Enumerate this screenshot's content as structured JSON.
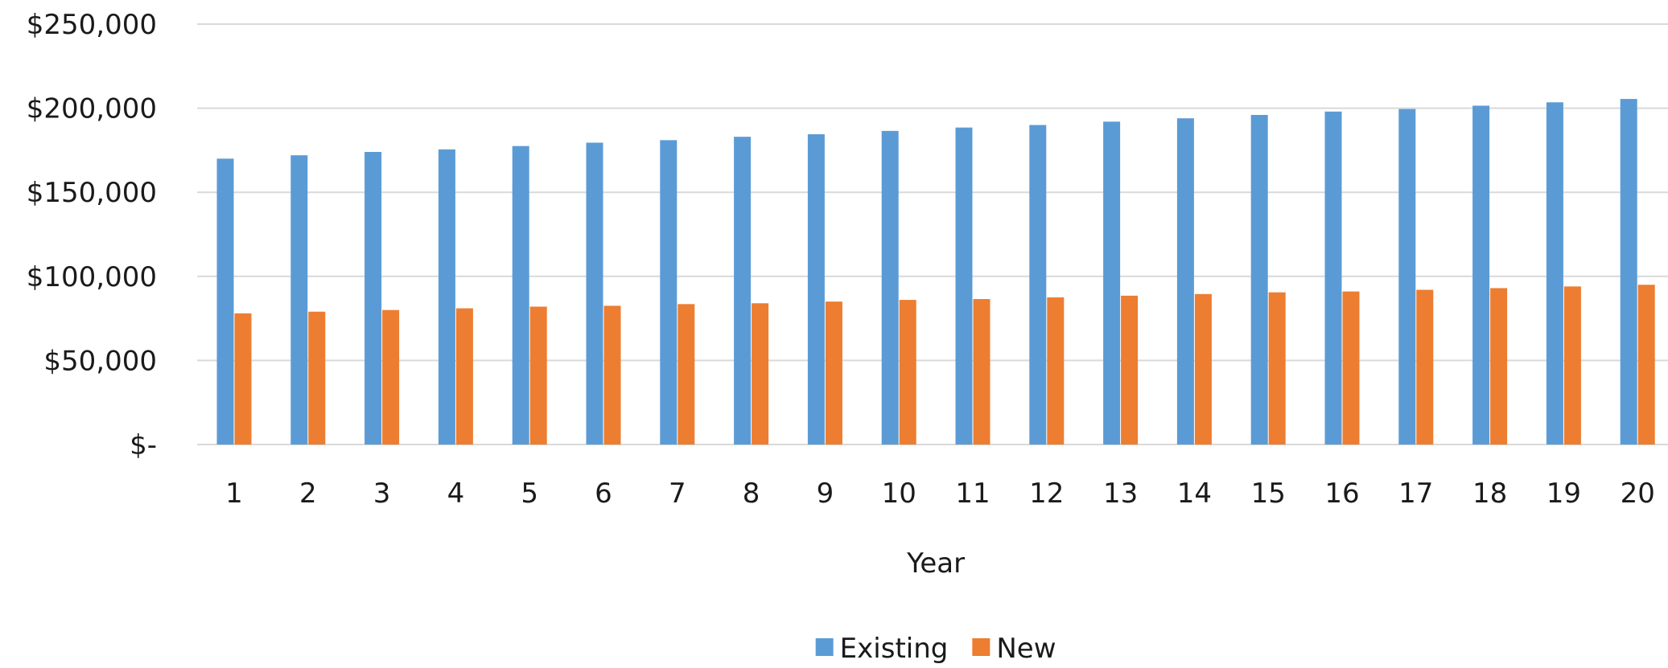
{
  "chart_data": {
    "type": "bar",
    "xlabel": "Year",
    "ylabel": "",
    "categories": [
      "1",
      "2",
      "3",
      "4",
      "5",
      "6",
      "7",
      "8",
      "9",
      "10",
      "11",
      "12",
      "13",
      "14",
      "15",
      "16",
      "17",
      "18",
      "19",
      "20"
    ],
    "series": [
      {
        "name": "Existing",
        "color": "#5B9BD5",
        "values": [
          170000,
          172000,
          174000,
          175500,
          177500,
          179500,
          181000,
          183000,
          184500,
          186500,
          188500,
          190000,
          192000,
          194000,
          196000,
          198000,
          199500,
          201500,
          203500,
          205500
        ]
      },
      {
        "name": "New",
        "color": "#ED7D31",
        "values": [
          78000,
          79000,
          80000,
          81000,
          82000,
          82500,
          83500,
          84000,
          85000,
          86000,
          86500,
          87500,
          88500,
          89500,
          90500,
          91000,
          92000,
          93000,
          94000,
          95000
        ]
      }
    ],
    "yticks": [
      0,
      50000,
      100000,
      150000,
      200000,
      250000
    ],
    "ytick_labels": [
      "$-",
      "$50,000",
      "$100,000",
      "$150,000",
      "$200,000",
      "$250,000"
    ],
    "ylim": [
      0,
      250000
    ],
    "grid": true,
    "legend_position": "bottom",
    "gridline_color": "#D9D9D9"
  }
}
